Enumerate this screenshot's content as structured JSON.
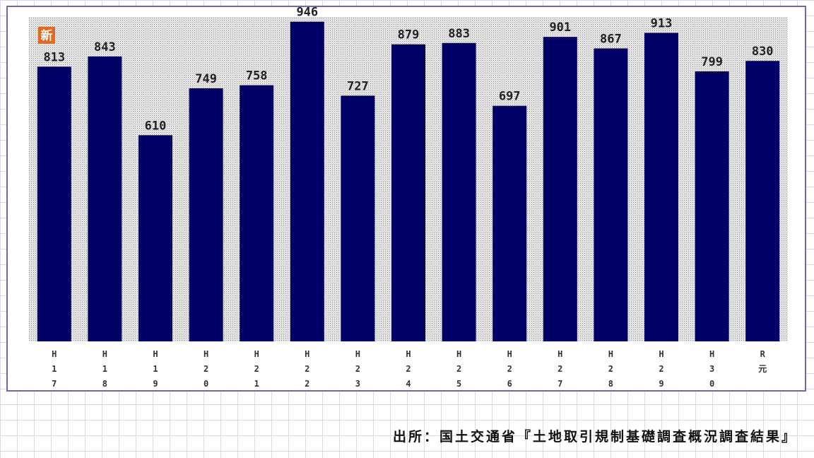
{
  "chart_data": {
    "type": "bar",
    "categories": [
      "H17",
      "H18",
      "H19",
      "H20",
      "H21",
      "H22",
      "H23",
      "H24",
      "H25",
      "H26",
      "H27",
      "H28",
      "H29",
      "H30",
      "R元"
    ],
    "values": [
      813,
      843,
      610,
      749,
      758,
      946,
      727,
      879,
      883,
      697,
      901,
      867,
      913,
      799,
      830
    ],
    "title": "",
    "xlabel": "",
    "ylabel": "",
    "ylim": [
      0,
      960
    ],
    "grid": false,
    "legend": "none",
    "bar_color": "#000066",
    "plot_background": "#e4e4e4"
  },
  "badge": {
    "text": "新",
    "color": "#e2691d"
  },
  "source_note": "出所：国土交通省『土地取引規制基礎調査概況調査結果』"
}
